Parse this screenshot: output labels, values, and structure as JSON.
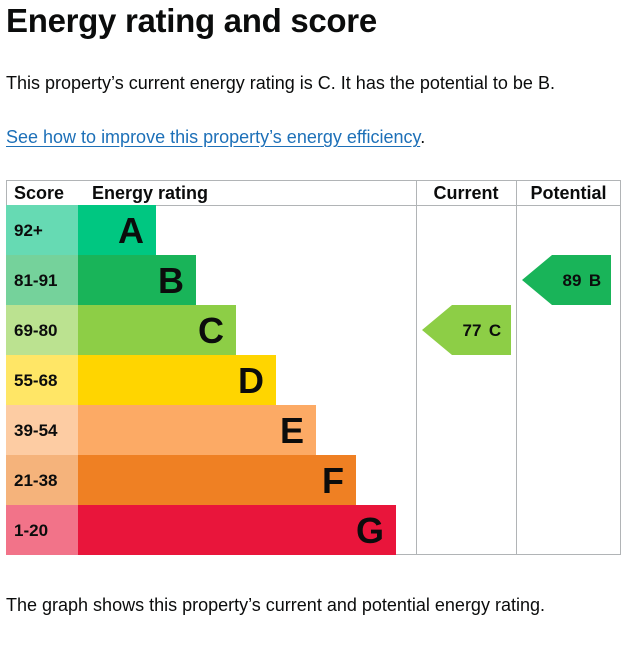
{
  "heading": "Energy rating and score",
  "intro": "This property’s current energy rating is C. It has the potential to be B.",
  "link": {
    "text": "See how to improve this property’s energy efficiency",
    "suffix": "."
  },
  "footer": "The graph shows this property’s current and potential energy rating.",
  "chart_data": {
    "type": "bar",
    "columns": {
      "score": "Score",
      "rating": "Energy rating",
      "current": "Current",
      "potential": "Potential"
    },
    "bands": [
      {
        "score": "92+",
        "letter": "A",
        "bar_color": "#00c781",
        "score_bg": "#66dab3"
      },
      {
        "score": "81-91",
        "letter": "B",
        "bar_color": "#19b459",
        "score_bg": "#75d29b"
      },
      {
        "score": "69-80",
        "letter": "C",
        "bar_color": "#8dce46",
        "score_bg": "#bbe290"
      },
      {
        "score": "55-68",
        "letter": "D",
        "bar_color": "#ffd500",
        "score_bg": "#ffe666"
      },
      {
        "score": "39-54",
        "letter": "E",
        "bar_color": "#fcaa65",
        "score_bg": "#fdcca3"
      },
      {
        "score": "21-38",
        "letter": "F",
        "bar_color": "#ef8023",
        "score_bg": "#f5b37b"
      },
      {
        "score": "1-20",
        "letter": "G",
        "bar_color": "#e9153b",
        "score_bg": "#f27389"
      }
    ],
    "current": {
      "value": 77,
      "letter": "C",
      "color": "#8dce46"
    },
    "potential": {
      "value": 89,
      "letter": "B",
      "color": "#19b459"
    }
  }
}
